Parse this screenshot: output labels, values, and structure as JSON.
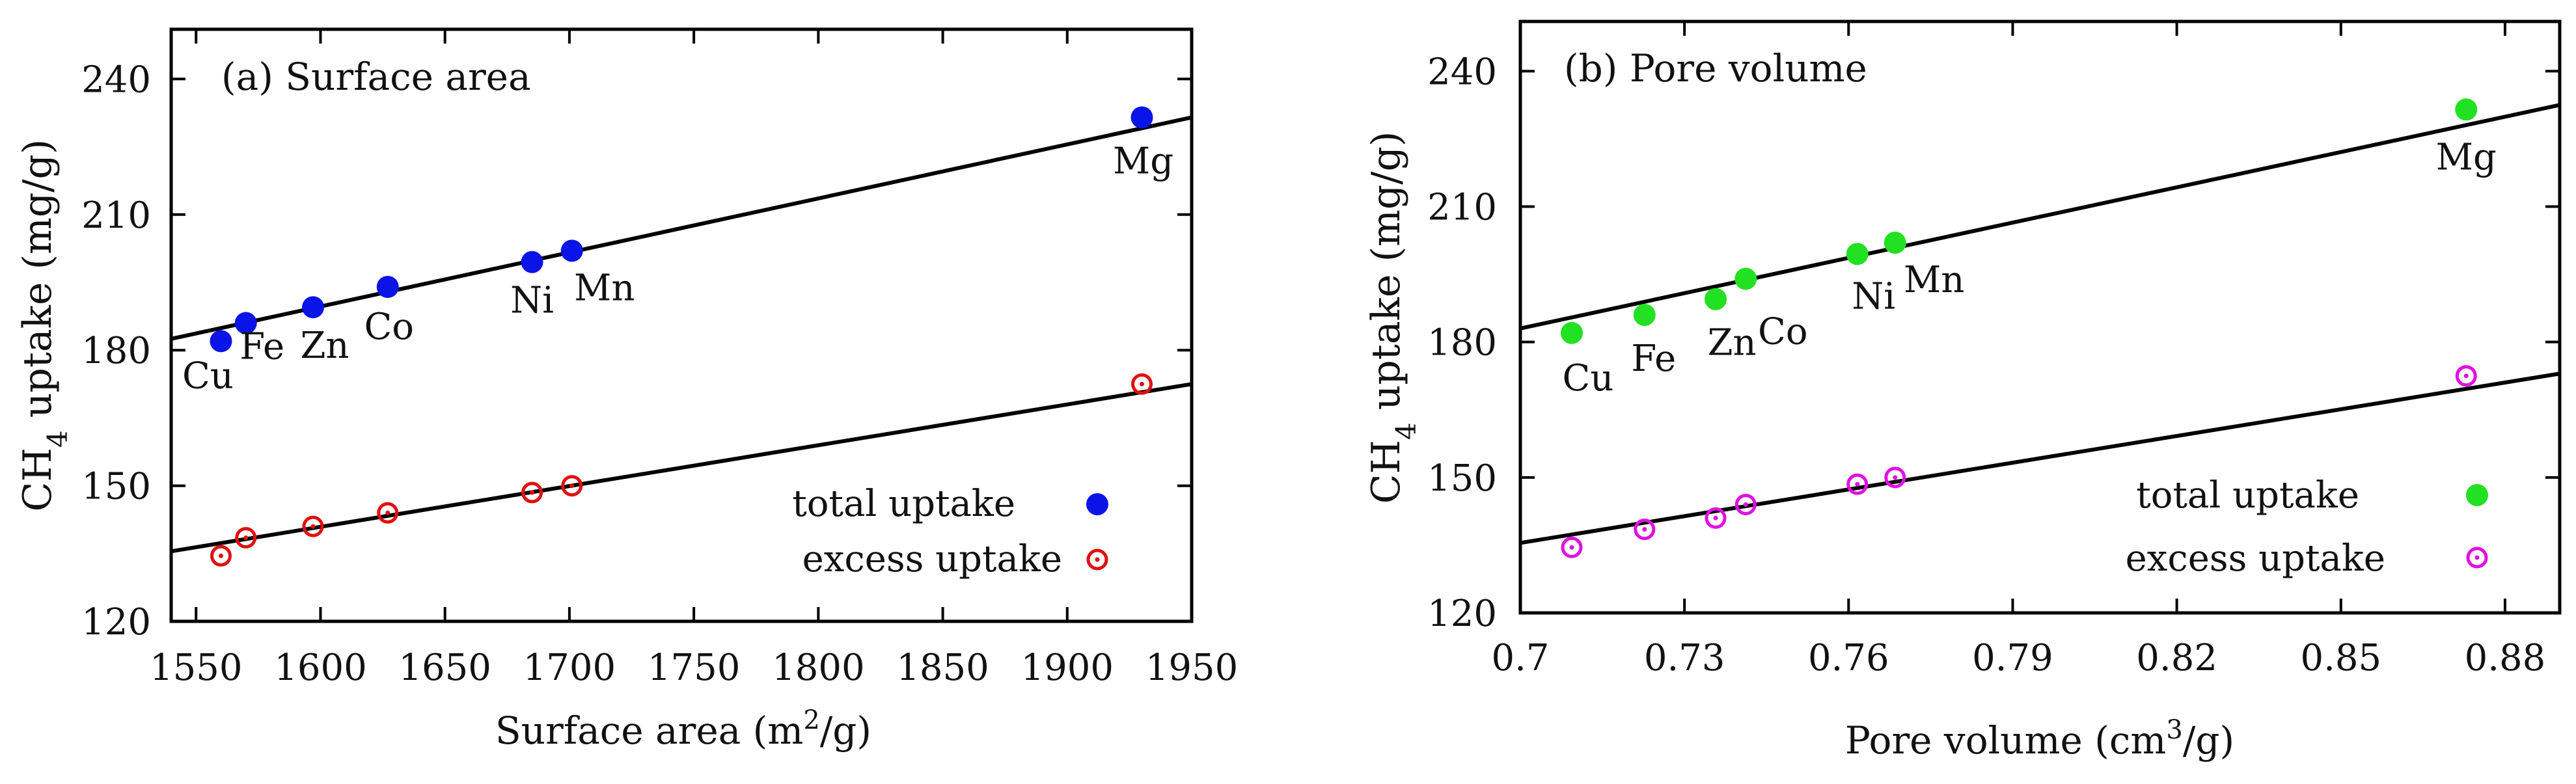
{
  "chart_data": [
    {
      "type": "scatter",
      "panel_label": "(a) Surface area",
      "xlabel": "Surface area",
      "xlabel_unit_pre": "(m",
      "xlabel_unit_sup": "2",
      "xlabel_unit_post": "/g)",
      "ylabel_main": "CH",
      "ylabel_sub": "4",
      "ylabel_rest": " uptake (mg/g)",
      "xlim": [
        1540,
        1950
      ],
      "ylim": [
        120,
        251
      ],
      "xticks": [
        "1550",
        "1600",
        "1650",
        "1700",
        "1750",
        "1800",
        "1850",
        "1900",
        "1950"
      ],
      "yticks": [
        "120",
        "150",
        "180",
        "210",
        "240"
      ],
      "x": [
        1560,
        1570,
        1597,
        1627,
        1685,
        1701,
        1930
      ],
      "point_labels": [
        "Cu",
        "Fe",
        "Zn",
        "Co",
        "Ni",
        "Mn",
        "Mg"
      ],
      "series": [
        {
          "name": "total uptake",
          "marker": "filled-circle",
          "color": "#0a14e6",
          "values": [
            182,
            186,
            189.5,
            194,
            199.5,
            202,
            231.5
          ]
        },
        {
          "name": "excess uptake",
          "marker": "open-dot-circle",
          "color": "#e01010",
          "values": [
            134.5,
            138.5,
            141,
            144,
            148.5,
            150,
            172.5
          ]
        }
      ],
      "fit_lines": [
        {
          "series": "total uptake",
          "x": [
            1540,
            1950
          ],
          "y": [
            182.5,
            231.5
          ]
        },
        {
          "series": "excess uptake",
          "x": [
            1540,
            1950
          ],
          "y": [
            135.5,
            172.5
          ]
        }
      ],
      "legend_position": "bottom-right"
    },
    {
      "type": "scatter",
      "panel_label": "(b) Pore volume",
      "xlabel": "Pore volume",
      "xlabel_unit_pre": "(cm",
      "xlabel_unit_sup": "3",
      "xlabel_unit_post": "/g)",
      "ylabel_main": "CH",
      "ylabel_sub": "4",
      "ylabel_rest": " uptake (mg/g)",
      "xlim": [
        0.7,
        0.89
      ],
      "ylim": [
        120,
        251
      ],
      "xticks": [
        "0.7",
        "0.73",
        "0.76",
        "0.79",
        "0.82",
        "0.85",
        "0.88"
      ],
      "yticks": [
        "120",
        "150",
        "180",
        "210",
        "240"
      ],
      "x": [
        0.7094,
        0.7227,
        0.7357,
        0.7412,
        0.7616,
        0.7685,
        0.8729
      ],
      "point_labels": [
        "Cu",
        "Fe",
        "Zn",
        "Co",
        "Ni",
        "Mn",
        "Mg"
      ],
      "series": [
        {
          "name": "total uptake",
          "marker": "filled-circle",
          "color": "#22e022",
          "values": [
            182,
            186,
            189.5,
            194,
            199.5,
            202,
            231.5
          ]
        },
        {
          "name": "excess uptake",
          "marker": "open-dot-circle",
          "color": "#e010e0",
          "values": [
            134.5,
            138.5,
            141,
            144,
            148.5,
            150,
            172.5
          ]
        }
      ],
      "fit_lines": [
        {
          "series": "total uptake",
          "x": [
            0.7,
            0.89
          ],
          "y": [
            183,
            232.5
          ]
        },
        {
          "series": "excess uptake",
          "x": [
            0.7,
            0.89
          ],
          "y": [
            135.5,
            173
          ]
        }
      ],
      "legend_position": "bottom-right"
    }
  ]
}
